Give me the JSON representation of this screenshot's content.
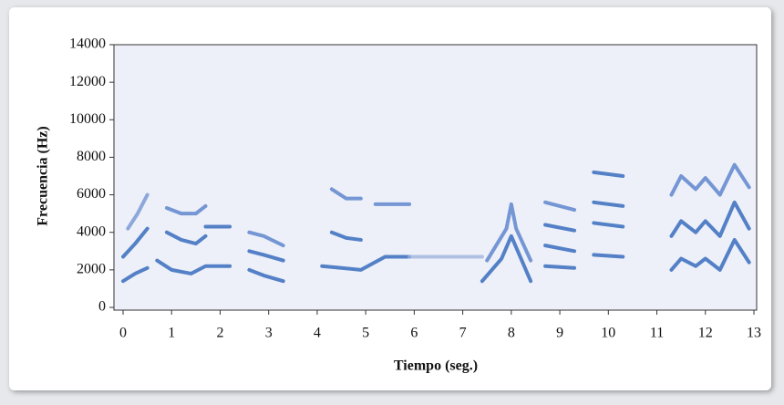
{
  "chart_data": {
    "type": "spectrogram",
    "xlabel": "Tiempo (seg.)",
    "ylabel": "Frecuencia (Hz)",
    "xlim": [
      0,
      13
    ],
    "ylim": [
      0,
      14000
    ],
    "xticks": [
      0,
      1,
      2,
      3,
      4,
      5,
      6,
      7,
      8,
      9,
      10,
      11,
      12,
      13
    ],
    "yticks": [
      0,
      2000,
      4000,
      6000,
      8000,
      10000,
      12000,
      14000
    ],
    "series": [
      {
        "color": "#1f5bb5",
        "x": [
          0,
          0.25,
          0.5
        ],
        "values": [
          1400,
          1800,
          2100
        ]
      },
      {
        "color": "#1f5bb5",
        "x": [
          0,
          0.25,
          0.5
        ],
        "values": [
          2700,
          3400,
          4200
        ]
      },
      {
        "color": "#6b8fd0",
        "x": [
          0.1,
          0.3,
          0.5
        ],
        "values": [
          4200,
          5000,
          6000
        ]
      },
      {
        "color": "#1f5bb5",
        "x": [
          0.7,
          1,
          1.4,
          1.7,
          2.2
        ],
        "values": [
          2500,
          2000,
          1800,
          2200,
          2200
        ]
      },
      {
        "color": "#1f5bb5",
        "x": [
          0.9,
          1.2,
          1.5,
          1.7
        ],
        "values": [
          4000,
          3600,
          3400,
          3800
        ]
      },
      {
        "color": "#4c78c8",
        "x": [
          0.9,
          1.2,
          1.5,
          1.7
        ],
        "values": [
          5300,
          5000,
          5000,
          5400
        ]
      },
      {
        "color": "#1f5bb5",
        "x": [
          1.7,
          2.2
        ],
        "values": [
          4300,
          4300
        ]
      },
      {
        "color": "#1f5bb5",
        "x": [
          2.6,
          2.9,
          3.3
        ],
        "values": [
          2000,
          1700,
          1400
        ]
      },
      {
        "color": "#1f5bb5",
        "x": [
          2.6,
          2.9,
          3.3
        ],
        "values": [
          3000,
          2800,
          2500
        ]
      },
      {
        "color": "#4c78c8",
        "x": [
          2.6,
          2.9,
          3.3
        ],
        "values": [
          4000,
          3800,
          3300
        ]
      },
      {
        "color": "#1f5bb5",
        "x": [
          4.1,
          4.5,
          4.9,
          5.4,
          5.9
        ],
        "values": [
          2200,
          2100,
          2000,
          2700,
          2700
        ]
      },
      {
        "color": "#1f5bb5",
        "x": [
          4.3,
          4.6,
          4.9
        ],
        "values": [
          4000,
          3700,
          3600
        ]
      },
      {
        "color": "#4c78c8",
        "x": [
          4.3,
          4.6,
          4.9
        ],
        "values": [
          6300,
          5800,
          5800
        ]
      },
      {
        "color": "#4c78c8",
        "x": [
          5.2,
          5.9
        ],
        "values": [
          5500,
          5500
        ]
      },
      {
        "color": "#9ab0dc",
        "x": [
          5.9,
          7.4
        ],
        "values": [
          2700,
          2700
        ]
      },
      {
        "color": "#1f5bb5",
        "x": [
          7.4,
          7.8,
          8.0,
          8.2,
          8.4
        ],
        "values": [
          1400,
          2600,
          3800,
          2600,
          1400
        ]
      },
      {
        "color": "#4c78c8",
        "x": [
          7.5,
          7.9,
          8.0,
          8.1,
          8.4
        ],
        "values": [
          2500,
          4200,
          5500,
          4200,
          2500
        ]
      },
      {
        "color": "#1f5bb5",
        "x": [
          8.7,
          9.3
        ],
        "values": [
          2200,
          2100
        ]
      },
      {
        "color": "#1f5bb5",
        "x": [
          8.7,
          9.3
        ],
        "values": [
          3300,
          3000
        ]
      },
      {
        "color": "#1f5bb5",
        "x": [
          8.7,
          9.3
        ],
        "values": [
          4400,
          4100
        ]
      },
      {
        "color": "#4c78c8",
        "x": [
          8.7,
          9.3
        ],
        "values": [
          5600,
          5200
        ]
      },
      {
        "color": "#1f5bb5",
        "x": [
          9.7,
          10.3
        ],
        "values": [
          2800,
          2700
        ]
      },
      {
        "color": "#1f5bb5",
        "x": [
          9.7,
          10.3
        ],
        "values": [
          4500,
          4300
        ]
      },
      {
        "color": "#1f5bb5",
        "x": [
          9.7,
          10.3
        ],
        "values": [
          5600,
          5400
        ]
      },
      {
        "color": "#1f5bb5",
        "x": [
          9.7,
          10.3
        ],
        "values": [
          7200,
          7000
        ]
      },
      {
        "color": "#1f5bb5",
        "x": [
          11.3,
          11.5,
          11.8,
          12.0,
          12.3,
          12.6,
          12.9
        ],
        "values": [
          2000,
          2600,
          2200,
          2600,
          2000,
          3600,
          2400
        ]
      },
      {
        "color": "#1f5bb5",
        "x": [
          11.3,
          11.5,
          11.8,
          12.0,
          12.3,
          12.6,
          12.9
        ],
        "values": [
          3800,
          4600,
          4000,
          4600,
          3800,
          5600,
          4200
        ]
      },
      {
        "color": "#4c78c8",
        "x": [
          11.3,
          11.5,
          11.8,
          12.0,
          12.3,
          12.6,
          12.9
        ],
        "values": [
          6000,
          7000,
          6300,
          6900,
          6000,
          7600,
          6400
        ]
      }
    ]
  }
}
